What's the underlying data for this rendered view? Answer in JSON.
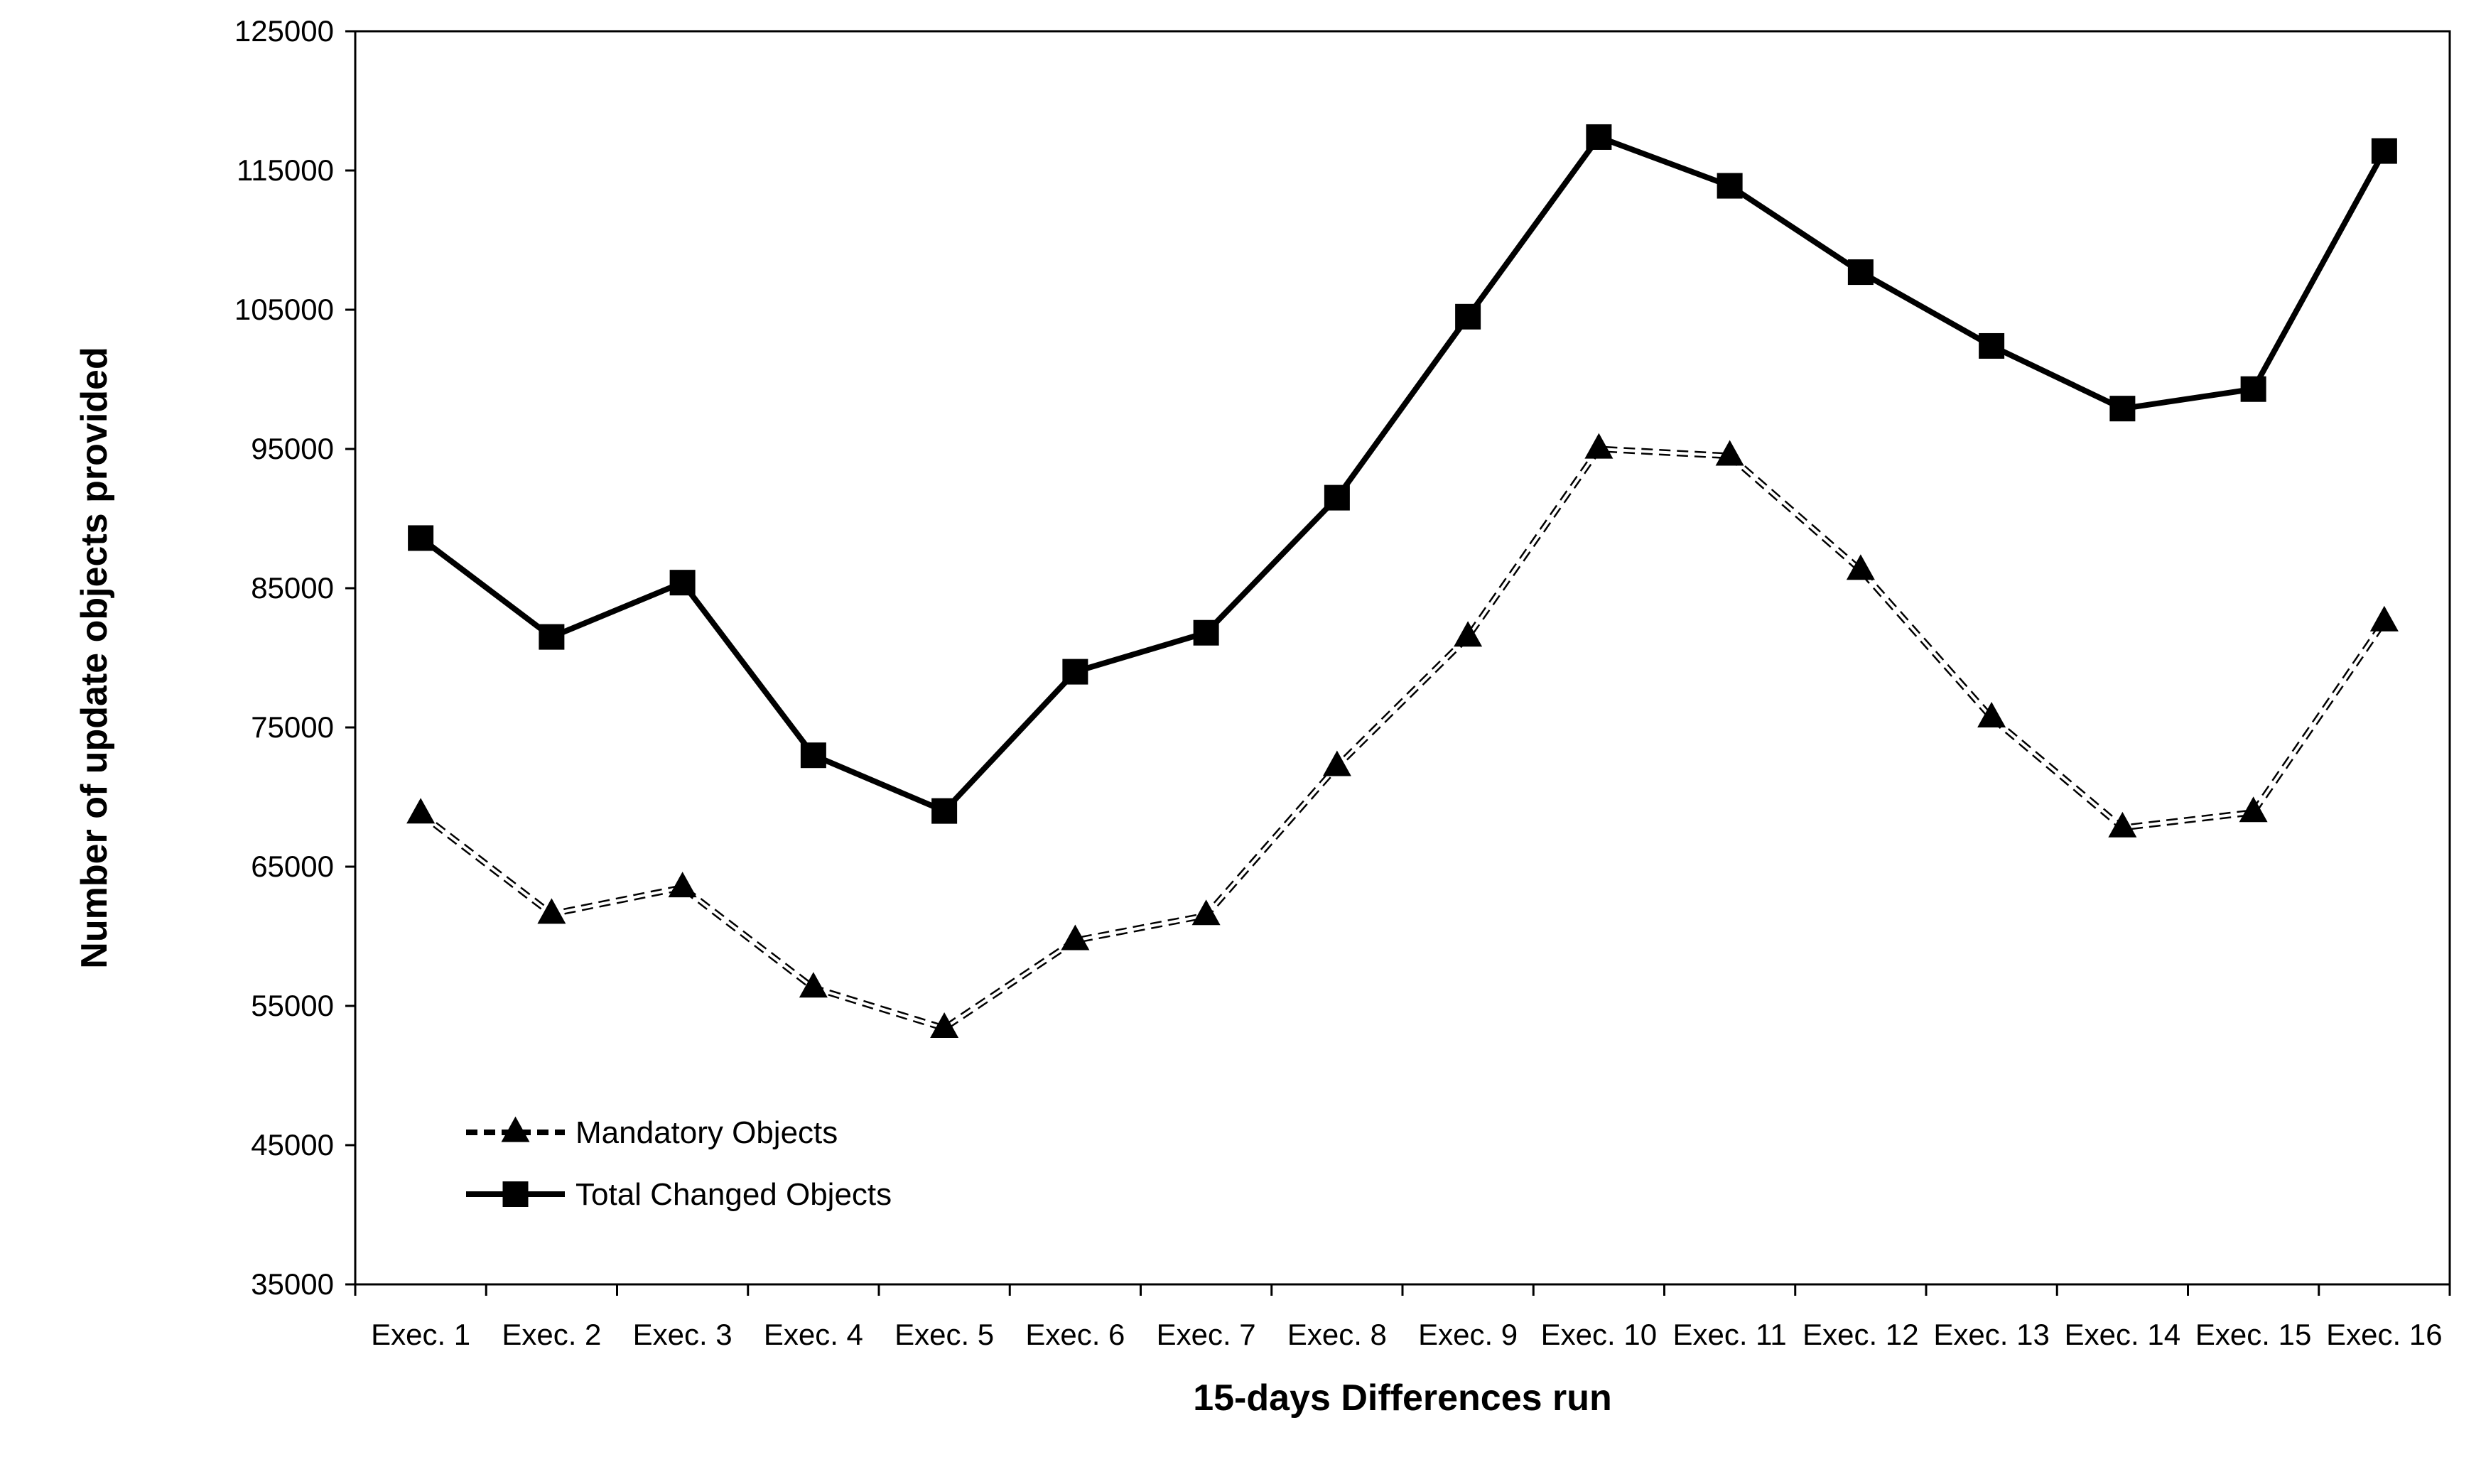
{
  "chart_data": {
    "type": "line",
    "title": "",
    "xlabel": "15-days Differences run",
    "ylabel": "Number of update objects provided",
    "ylim": [
      35000,
      125000
    ],
    "yticks": [
      35000,
      45000,
      55000,
      65000,
      75000,
      85000,
      95000,
      105000,
      115000,
      125000
    ],
    "grid": false,
    "legend_position": "lower-left",
    "categories": [
      "Exec. 1",
      "Exec. 2",
      "Exec. 3",
      "Exec. 4",
      "Exec. 5",
      "Exec. 6",
      "Exec. 7",
      "Exec. 8",
      "Exec. 9",
      "Exec. 10",
      "Exec. 11",
      "Exec. 12",
      "Exec. 13",
      "Exec. 14",
      "Exec. 15",
      "Exec. 16"
    ],
    "series": [
      {
        "name": "Mandatory Objects",
        "marker": "triangle",
        "line_style": "dashed",
        "color": "#000000",
        "values": [
          68800,
          61600,
          63500,
          56300,
          53400,
          59700,
          61500,
          72200,
          81500,
          95000,
          94500,
          86300,
          75700,
          67800,
          68900,
          82600
        ]
      },
      {
        "name": "Total Changed Objects",
        "marker": "square",
        "line_style": "solid",
        "color": "#000000",
        "values": [
          88600,
          81500,
          85400,
          73000,
          69000,
          79000,
          81800,
          91500,
          104500,
          117400,
          113900,
          107700,
          102400,
          97900,
          99300,
          116400
        ]
      }
    ]
  }
}
